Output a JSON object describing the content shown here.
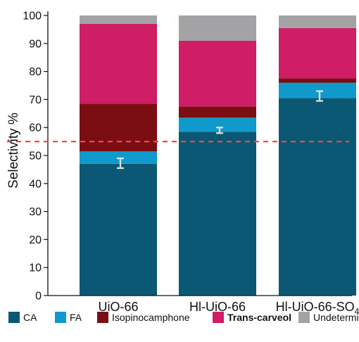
{
  "chart_data": {
    "type": "bar",
    "stacked": true,
    "title": "",
    "xlabel": "",
    "ylabel": "Selectivity %",
    "ylim": [
      0,
      100
    ],
    "yticks": [
      0,
      10,
      20,
      30,
      40,
      50,
      60,
      70,
      80,
      90,
      100
    ],
    "grid": false,
    "legend_position": "bottom",
    "categories": [
      {
        "base": "UiO-66",
        "sub": ""
      },
      {
        "base": "Hl-UiO-66",
        "sub": ""
      },
      {
        "base": "Hl-UiO-66-SO",
        "sub": "4"
      }
    ],
    "series": [
      {
        "name": "CA",
        "color": "#0a5873",
        "values": [
          47,
          58.5,
          70.5
        ]
      },
      {
        "name": "FA",
        "color": "#0f9acb",
        "values": [
          4.5,
          5,
          5.5
        ]
      },
      {
        "name": "Isopinocamphone",
        "color": "#7a0e13",
        "values": [
          17,
          4,
          1.5
        ]
      },
      {
        "name": "Trans-carveol",
        "color": "#cf1d66",
        "values": [
          28.5,
          23.5,
          18
        ]
      },
      {
        "name": "Undetermined",
        "color": "#a3a3a6",
        "values": [
          3,
          9,
          4.5
        ]
      }
    ],
    "error_bars": [
      {
        "center": 47,
        "low": 45.5,
        "high": 49
      },
      {
        "center": 59,
        "low": 58,
        "high": 60
      },
      {
        "center": 71,
        "low": 69.5,
        "high": 73
      }
    ],
    "reference_line": {
      "y": 55,
      "color": "#ef4a4a",
      "style": "dashed"
    }
  },
  "legend_bold": [
    "Trans-carveol"
  ]
}
